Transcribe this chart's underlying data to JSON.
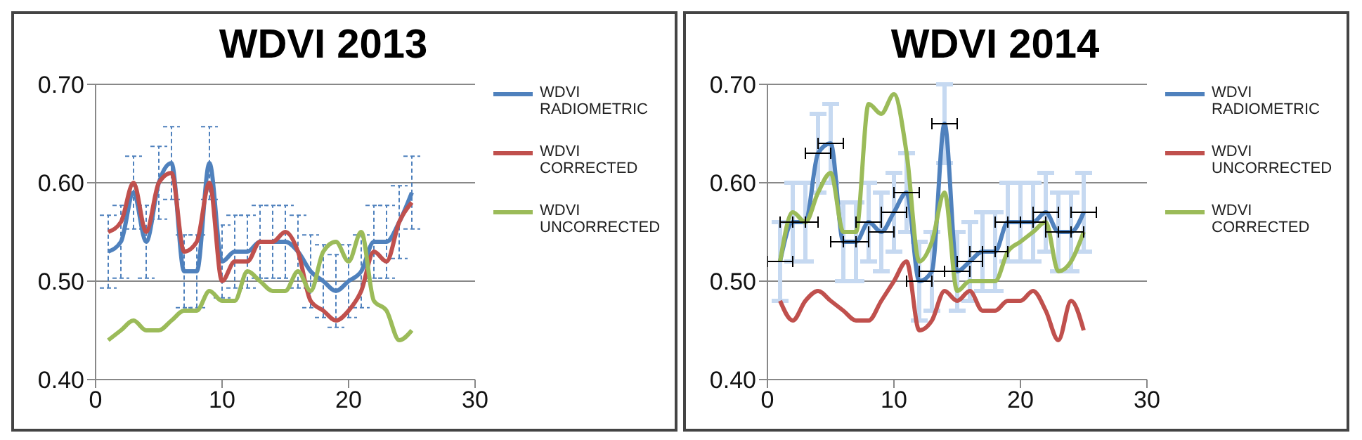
{
  "chart_data": [
    {
      "type": "line",
      "title": "WDVI 2013",
      "x": [
        1,
        2,
        3,
        4,
        5,
        6,
        7,
        8,
        9,
        10,
        11,
        12,
        13,
        14,
        15,
        16,
        17,
        18,
        19,
        20,
        21,
        22,
        23,
        24,
        25
      ],
      "xlim": [
        0,
        30
      ],
      "xticks": [
        0,
        10,
        20,
        30
      ],
      "ylim": [
        0.4,
        0.7
      ],
      "yticks": [
        {
          "value": 0.4,
          "label": "0.40"
        },
        {
          "value": 0.5,
          "label": "0.50"
        },
        {
          "value": 0.6,
          "label": "0.60"
        },
        {
          "value": 0.7,
          "label": "0.70"
        }
      ],
      "grid": "y",
      "legend": "right",
      "marker": "none",
      "series": [
        {
          "name": "WDVI RADIOMETRIC",
          "color": "#4f81bd",
          "values": [
            0.53,
            0.54,
            0.59,
            0.54,
            0.6,
            0.62,
            0.51,
            0.51,
            0.62,
            0.52,
            0.53,
            0.53,
            0.54,
            0.54,
            0.54,
            0.53,
            0.51,
            0.5,
            0.49,
            0.5,
            0.51,
            0.54,
            0.54,
            0.56,
            0.59
          ],
          "errors": [
            0.037,
            0.037,
            0.037,
            0.037,
            0.037,
            0.037,
            0.037,
            0.037,
            0.037,
            0.037,
            0.037,
            0.037,
            0.037,
            0.037,
            0.037,
            0.037,
            0.037,
            0.037,
            0.037,
            0.037,
            0.037,
            0.037,
            0.037,
            0.037,
            0.037
          ]
        },
        {
          "name": "WDVI CORRECTED",
          "color": "#c0504d",
          "values": [
            0.55,
            0.56,
            0.6,
            0.55,
            0.6,
            0.61,
            0.53,
            0.54,
            0.6,
            0.5,
            0.52,
            0.52,
            0.54,
            0.54,
            0.55,
            0.53,
            0.48,
            0.47,
            0.46,
            0.47,
            0.49,
            0.53,
            0.52,
            0.56,
            0.58
          ]
        },
        {
          "name": "WDVI UNCORRECTED",
          "color": "#9bbb59",
          "values": [
            0.44,
            0.45,
            0.46,
            0.45,
            0.45,
            0.46,
            0.47,
            0.47,
            0.49,
            0.48,
            0.48,
            0.51,
            0.5,
            0.49,
            0.49,
            0.51,
            0.49,
            0.53,
            0.54,
            0.52,
            0.55,
            0.48,
            0.47,
            0.44,
            0.45
          ]
        }
      ]
    },
    {
      "type": "line",
      "title": "WDVI 2014",
      "x": [
        1,
        2,
        3,
        4,
        5,
        6,
        7,
        8,
        9,
        10,
        11,
        12,
        13,
        14,
        15,
        16,
        17,
        18,
        19,
        20,
        21,
        22,
        23,
        24,
        25
      ],
      "xlim": [
        0,
        30
      ],
      "xticks": [
        0,
        10,
        20,
        30
      ],
      "ylim": [
        0.4,
        0.7
      ],
      "yticks": [
        {
          "value": 0.4,
          "label": "0.40"
        },
        {
          "value": 0.5,
          "label": "0.50"
        },
        {
          "value": 0.6,
          "label": "0.60"
        },
        {
          "value": 0.7,
          "label": "0.70"
        }
      ],
      "grid": "y",
      "legend": "right",
      "marker": "none",
      "series": [
        {
          "name": "WDVI RADIOMETRIC",
          "color": "#4f81bd",
          "values": [
            0.52,
            0.56,
            0.56,
            0.63,
            0.64,
            0.54,
            0.54,
            0.56,
            0.55,
            0.57,
            0.59,
            0.5,
            0.51,
            0.66,
            0.51,
            0.52,
            0.53,
            0.53,
            0.56,
            0.56,
            0.56,
            0.57,
            0.55,
            0.55,
            0.57
          ],
          "errors": [
            0.04,
            0.04,
            0.04,
            0.04,
            0.04,
            0.04,
            0.04,
            0.04,
            0.04,
            0.04,
            0.04,
            0.04,
            0.04,
            0.04,
            0.04,
            0.04,
            0.04,
            0.04,
            0.04,
            0.04,
            0.04,
            0.04,
            0.04,
            0.04,
            0.04
          ],
          "xerrors": [
            1,
            1,
            1,
            1,
            1,
            1,
            1,
            1,
            1,
            1,
            1,
            1,
            1,
            1,
            1,
            1,
            1,
            1,
            1,
            1,
            1,
            1,
            1,
            1,
            1
          ]
        },
        {
          "name": "WDVI UNCORRECTED",
          "color": "#c0504d",
          "values": [
            0.48,
            0.46,
            0.48,
            0.49,
            0.48,
            0.47,
            0.46,
            0.46,
            0.48,
            0.5,
            0.52,
            0.45,
            0.46,
            0.49,
            0.48,
            0.49,
            0.47,
            0.47,
            0.48,
            0.48,
            0.49,
            0.47,
            0.44,
            0.48,
            0.45
          ]
        },
        {
          "name": "WDVI CORRECTED",
          "color": "#9bbb59",
          "values": [
            0.52,
            0.57,
            0.56,
            0.59,
            0.61,
            0.55,
            0.55,
            0.68,
            0.67,
            0.69,
            0.63,
            0.52,
            0.54,
            0.59,
            0.49,
            0.5,
            0.5,
            0.5,
            0.53,
            0.54,
            0.55,
            0.56,
            0.51,
            0.52,
            0.55
          ]
        }
      ]
    }
  ]
}
